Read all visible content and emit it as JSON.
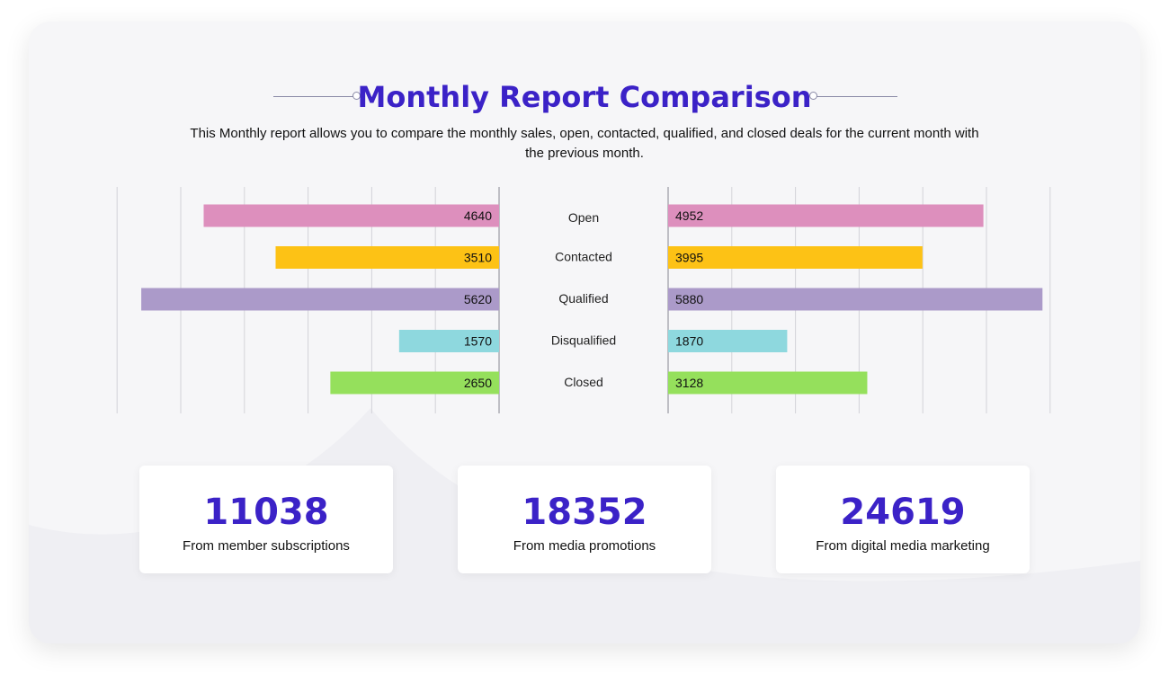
{
  "title": "Monthly Report Comparison",
  "subtitle": "This Monthly report allows you to compare the monthly sales, open, contacted, qualified, and closed deals for the current month with the previous month.",
  "chart_data": {
    "type": "bar",
    "orientation": "horizontal-butterfly",
    "categories": [
      "Open",
      "Contacted",
      "Qualified",
      "Disqualified",
      "Closed"
    ],
    "series": [
      {
        "values": [
          4640,
          3510,
          5620,
          1570,
          2650
        ]
      },
      {
        "values": [
          4952,
          3995,
          5880,
          1870,
          3128
        ]
      }
    ],
    "colors": [
      "#dd8fbd",
      "#fdc215",
      "#ab9ac9",
      "#8ed8de",
      "#95e05c"
    ],
    "xlim": [
      0,
      6000
    ],
    "grid": true
  },
  "stats": [
    {
      "value": "11038",
      "label": "From member subscriptions"
    },
    {
      "value": "18352",
      "label": "From media promotions"
    },
    {
      "value": "24619",
      "label": "From digital media marketing"
    }
  ],
  "colors": {
    "accent": "#3b22c7",
    "card_bg": "#f6f6f8"
  }
}
